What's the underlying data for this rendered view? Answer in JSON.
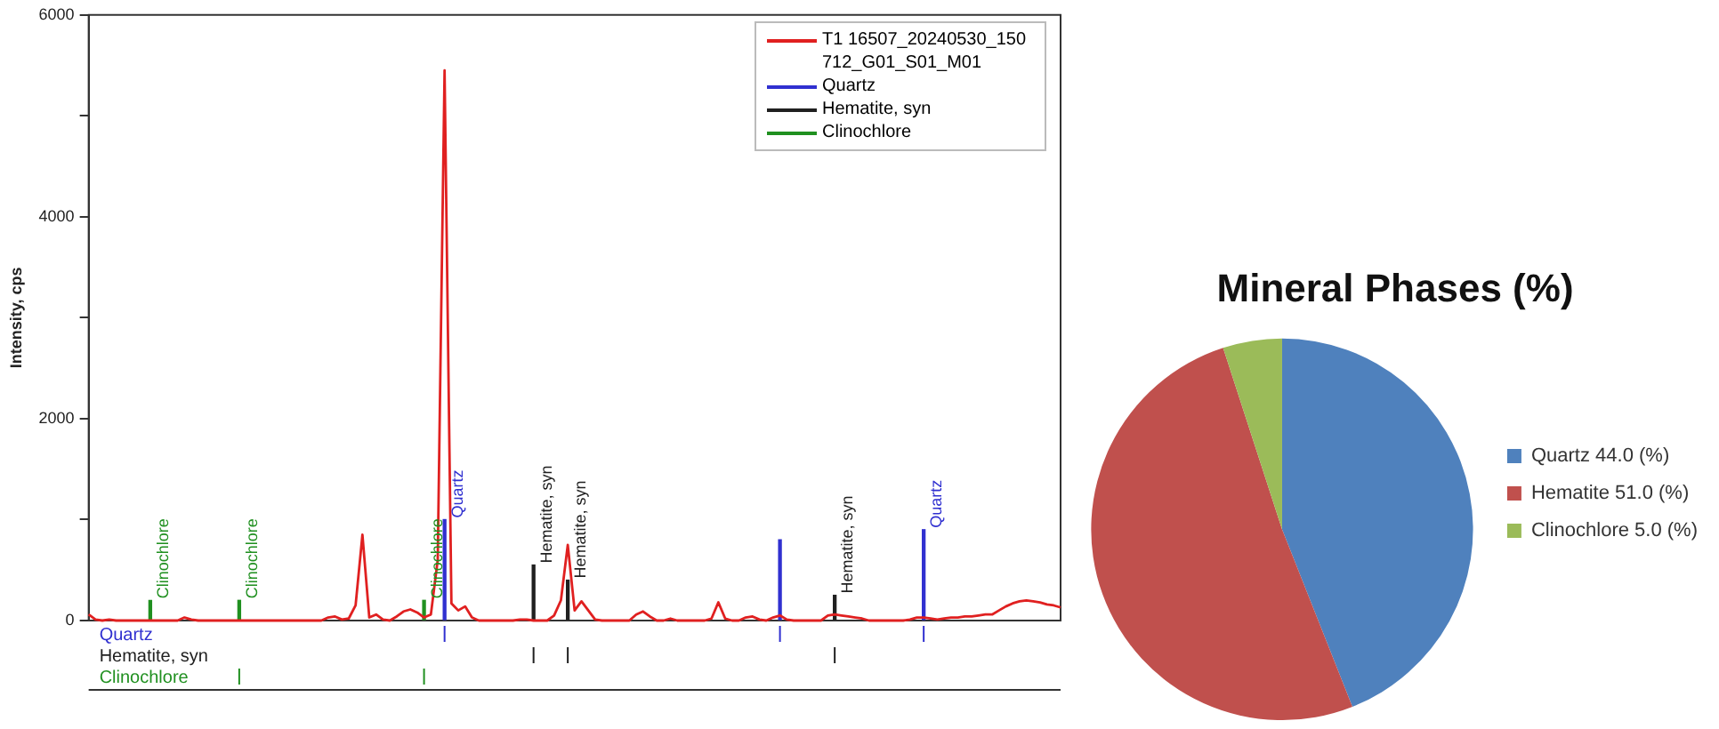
{
  "chart_data": [
    {
      "type": "line",
      "ylabel": "Intensity, cps",
      "ylim": [
        0,
        6000
      ],
      "yticks": [
        0,
        {
          "value": 1000,
          "label": null
        },
        2000,
        {
          "value": 3000,
          "label": null
        },
        4000,
        {
          "value": 5000,
          "label": null
        },
        6000
      ],
      "tick_labels": "y",
      "legend": "top right",
      "categories": [
        null,
        null,
        null,
        null,
        null,
        null,
        null,
        null,
        null,
        null,
        null,
        null,
        null,
        null,
        null,
        null,
        null,
        null,
        null,
        null,
        null,
        null,
        null,
        null,
        null,
        null,
        null,
        null,
        null,
        null,
        null,
        null,
        null,
        null,
        null,
        null,
        null,
        null,
        null,
        null,
        null,
        null,
        null,
        null,
        null,
        null,
        null,
        null,
        null,
        null,
        null,
        null,
        null,
        null,
        null,
        null,
        null,
        null,
        null,
        null,
        null,
        null,
        null,
        null,
        null,
        null,
        null,
        null,
        null,
        null,
        null,
        null,
        null,
        null,
        null,
        null,
        null,
        null,
        null,
        null,
        null,
        null,
        null,
        null,
        null,
        null,
        null,
        null,
        null,
        null,
        null,
        null,
        null,
        null,
        null,
        null,
        null,
        null,
        null,
        null,
        null,
        null,
        null,
        null,
        null,
        null,
        null,
        null,
        null,
        null,
        null,
        null,
        null,
        null,
        null,
        null,
        null,
        null,
        null,
        null,
        null,
        null,
        null,
        null,
        null,
        null,
        null,
        null,
        null,
        null,
        null,
        null,
        null,
        null,
        null,
        null,
        null,
        null,
        null,
        null,
        null,
        null,
        null
      ],
      "series": [
        {
          "name": "T1 16507_20240530_150712_G01_S01_M01",
          "type": "line",
          "color": "#e02020",
          "values": [
            60,
            10,
            0,
            10,
            0,
            0,
            0,
            0,
            0,
            0,
            0,
            0,
            0,
            0,
            30,
            10,
            0,
            0,
            0,
            0,
            0,
            0,
            0,
            0,
            0,
            0,
            0,
            0,
            0,
            0,
            0,
            0,
            0,
            0,
            0,
            30,
            40,
            10,
            20,
            150,
            850,
            30,
            60,
            10,
            0,
            40,
            90,
            110,
            80,
            30,
            60,
            600,
            5450,
            170,
            100,
            140,
            30,
            0,
            0,
            0,
            0,
            0,
            0,
            10,
            10,
            0,
            0,
            0,
            50,
            200,
            750,
            100,
            190,
            100,
            10,
            0,
            0,
            0,
            0,
            0,
            60,
            90,
            40,
            0,
            0,
            20,
            0,
            0,
            0,
            0,
            0,
            20,
            180,
            20,
            0,
            0,
            30,
            40,
            10,
            0,
            30,
            50,
            10,
            0,
            0,
            0,
            0,
            0,
            50,
            60,
            50,
            40,
            30,
            20,
            0,
            0,
            0,
            0,
            0,
            0,
            10,
            30,
            30,
            20,
            10,
            20,
            30,
            30,
            40,
            40,
            50,
            60,
            60,
            100,
            140,
            170,
            190,
            200,
            190,
            180,
            160,
            150,
            130
          ]
        },
        {
          "name": "Quartz",
          "type": "bar",
          "color": "#3030d0",
          "values": [
            null,
            null,
            null,
            null,
            null,
            null,
            null,
            null,
            null,
            null,
            null,
            null,
            null,
            null,
            null,
            null,
            null,
            null,
            null,
            null,
            null,
            null,
            null,
            null,
            null,
            null,
            null,
            null,
            null,
            null,
            null,
            null,
            null,
            null,
            null,
            null,
            null,
            null,
            null,
            null,
            null,
            null,
            null,
            null,
            null,
            null,
            null,
            null,
            null,
            null,
            null,
            null,
            1000,
            null,
            null,
            null,
            null,
            null,
            null,
            null,
            null,
            null,
            null,
            null,
            null,
            null,
            null,
            null,
            null,
            null,
            null,
            null,
            null,
            null,
            null,
            null,
            null,
            null,
            null,
            null,
            null,
            null,
            null,
            null,
            null,
            null,
            null,
            null,
            null,
            null,
            null,
            null,
            null,
            null,
            null,
            null,
            null,
            null,
            null,
            null,
            null,
            800,
            null,
            null,
            null,
            null,
            null,
            null,
            null,
            null,
            null,
            null,
            null,
            null,
            null,
            null,
            null,
            null,
            null,
            null,
            null,
            null,
            900,
            null,
            null,
            null,
            null,
            null,
            null,
            null,
            null,
            null,
            null,
            null,
            null,
            null,
            null,
            null,
            null,
            null,
            null,
            null,
            null
          ],
          "value_labels": [
            null,
            null,
            null,
            null,
            null,
            null,
            null,
            null,
            null,
            null,
            null,
            null,
            null,
            null,
            null,
            null,
            null,
            null,
            null,
            null,
            null,
            null,
            null,
            null,
            null,
            null,
            null,
            null,
            null,
            null,
            null,
            null,
            null,
            null,
            null,
            null,
            null,
            null,
            null,
            null,
            null,
            null,
            null,
            null,
            null,
            null,
            null,
            null,
            null,
            null,
            null,
            null,
            "Quartz",
            null,
            null,
            null,
            null,
            null,
            null,
            null,
            null,
            null,
            null,
            null,
            null,
            null,
            null,
            null,
            null,
            null,
            null,
            null,
            null,
            null,
            null,
            null,
            null,
            null,
            null,
            null,
            null,
            null,
            null,
            null,
            null,
            null,
            null,
            null,
            null,
            null,
            null,
            null,
            null,
            null,
            null,
            null,
            null,
            null,
            null,
            null,
            null,
            null,
            null,
            null,
            null,
            null,
            null,
            null,
            null,
            null,
            null,
            null,
            null,
            null,
            null,
            null,
            null,
            null,
            null,
            null,
            null,
            null,
            "Quartz",
            null,
            null,
            null,
            null,
            null,
            null,
            null,
            null,
            null,
            null,
            null,
            null,
            null,
            null,
            null,
            null,
            null,
            null,
            null,
            null
          ]
        },
        {
          "name": "Hematite, syn",
          "type": "bar",
          "color": "#202020",
          "values": [
            null,
            null,
            null,
            null,
            null,
            null,
            null,
            null,
            null,
            null,
            null,
            null,
            null,
            null,
            null,
            null,
            null,
            null,
            null,
            null,
            null,
            null,
            null,
            null,
            null,
            null,
            null,
            null,
            null,
            null,
            null,
            null,
            null,
            null,
            null,
            null,
            null,
            null,
            null,
            null,
            null,
            null,
            null,
            null,
            null,
            null,
            null,
            null,
            null,
            null,
            null,
            null,
            null,
            null,
            null,
            null,
            null,
            null,
            null,
            null,
            null,
            null,
            null,
            null,
            null,
            550,
            null,
            null,
            null,
            null,
            400,
            null,
            null,
            null,
            null,
            null,
            null,
            null,
            null,
            null,
            null,
            null,
            null,
            null,
            null,
            null,
            null,
            null,
            null,
            null,
            null,
            null,
            null,
            null,
            null,
            null,
            null,
            null,
            null,
            null,
            null,
            null,
            null,
            null,
            null,
            null,
            null,
            null,
            null,
            250,
            null,
            null,
            null,
            null,
            null,
            null,
            null,
            null,
            null,
            null,
            null,
            null,
            null,
            null,
            null,
            null,
            null,
            null,
            null,
            null,
            null,
            null,
            null,
            null,
            null,
            null,
            null,
            null,
            null,
            null,
            null,
            null,
            null
          ],
          "value_labels": [
            null,
            null,
            null,
            null,
            null,
            null,
            null,
            null,
            null,
            null,
            null,
            null,
            null,
            null,
            null,
            null,
            null,
            null,
            null,
            null,
            null,
            null,
            null,
            null,
            null,
            null,
            null,
            null,
            null,
            null,
            null,
            null,
            null,
            null,
            null,
            null,
            null,
            null,
            null,
            null,
            null,
            null,
            null,
            null,
            null,
            null,
            null,
            null,
            null,
            null,
            null,
            null,
            null,
            null,
            null,
            null,
            null,
            null,
            null,
            null,
            null,
            null,
            null,
            null,
            null,
            "Hematite, syn",
            null,
            null,
            null,
            null,
            "Hematite, syn",
            null,
            null,
            null,
            null,
            null,
            null,
            null,
            null,
            null,
            null,
            null,
            null,
            null,
            null,
            null,
            null,
            null,
            null,
            null,
            null,
            null,
            null,
            null,
            null,
            null,
            null,
            null,
            null,
            null,
            null,
            null,
            null,
            null,
            null,
            null,
            null,
            null,
            null,
            "Hematite, syn",
            null,
            null,
            null,
            null,
            null,
            null,
            null,
            null,
            null,
            null,
            null,
            null,
            null,
            null,
            null,
            null,
            null,
            null,
            null,
            null,
            null,
            null,
            null,
            null,
            null,
            null,
            null,
            null,
            null,
            null,
            null,
            null,
            null
          ]
        },
        {
          "name": "Clinochlore",
          "type": "bar",
          "color": "#209020",
          "values": [
            null,
            null,
            null,
            null,
            null,
            null,
            null,
            null,
            null,
            200,
            null,
            null,
            null,
            null,
            null,
            null,
            null,
            null,
            null,
            null,
            null,
            null,
            200,
            null,
            null,
            null,
            null,
            null,
            null,
            null,
            null,
            null,
            null,
            null,
            null,
            null,
            null,
            null,
            null,
            null,
            null,
            null,
            null,
            null,
            null,
            null,
            null,
            null,
            null,
            200,
            null,
            null,
            null,
            null,
            null,
            null,
            null,
            null,
            null,
            null,
            null,
            null,
            null,
            null,
            null,
            null,
            null,
            null,
            null,
            null,
            null,
            null,
            null,
            null,
            null,
            null,
            null,
            null,
            null,
            null,
            null,
            null,
            null,
            null,
            null,
            null,
            null,
            null,
            null,
            null,
            null,
            null,
            null,
            null,
            null,
            null,
            null,
            null,
            null,
            null,
            null,
            null,
            null,
            null,
            null,
            null,
            null,
            null,
            null,
            null,
            null,
            null,
            null,
            null,
            null,
            null,
            null,
            null,
            null,
            null,
            null,
            null,
            null,
            null,
            null,
            null,
            null,
            null,
            null,
            null,
            null,
            null,
            null,
            null,
            null,
            null,
            null,
            null,
            null,
            null,
            null,
            null,
            null
          ],
          "value_labels": [
            null,
            null,
            null,
            null,
            null,
            null,
            null,
            null,
            null,
            "Clinochlore",
            null,
            null,
            null,
            null,
            null,
            null,
            null,
            null,
            null,
            null,
            null,
            null,
            "Clinochlore",
            null,
            null,
            null,
            null,
            null,
            null,
            null,
            null,
            null,
            null,
            null,
            null,
            null,
            null,
            null,
            null,
            null,
            null,
            null,
            null,
            null,
            null,
            null,
            null,
            null,
            null,
            "Clinochlore",
            null,
            null,
            null,
            null,
            null,
            null,
            null,
            null,
            null,
            null,
            null,
            null,
            null,
            null,
            null,
            null,
            null,
            null,
            null,
            null,
            null,
            null,
            null,
            null,
            null,
            null,
            null,
            null,
            null,
            null,
            null,
            null,
            null,
            null,
            null,
            null,
            null,
            null,
            null,
            null,
            null,
            null,
            null,
            null,
            null,
            null,
            null,
            null,
            null,
            null,
            null,
            null,
            null,
            null,
            null,
            null,
            null,
            null,
            null,
            null,
            null,
            null,
            null,
            null,
            null,
            null,
            null,
            null,
            null,
            null,
            null,
            null,
            null,
            null,
            null,
            null,
            null,
            null,
            null,
            null,
            null,
            null,
            null,
            null,
            null,
            null,
            null,
            null,
            null,
            null,
            null,
            null,
            null
          ]
        }
      ]
    },
    {
      "type": "pie",
      "title": "Mineral Phases (%)",
      "categories": [
        "Quartz 44.0 (%)",
        "Hematite 51.0 (%)",
        "Clinochlore 5.0 (%)"
      ],
      "values": [
        44,
        51,
        5
      ],
      "colors": [
        "#4f81bd",
        "#c0504d",
        "#9bbb59"
      ],
      "legend": "right"
    }
  ]
}
